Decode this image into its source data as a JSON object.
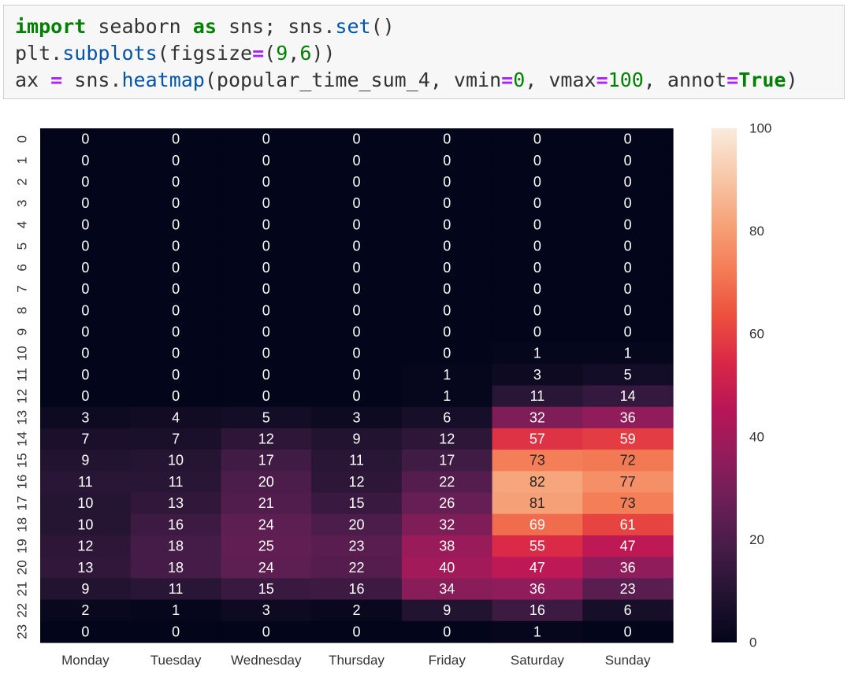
{
  "code": {
    "line1": {
      "kw1": "import",
      "t1": " seaborn ",
      "kw2": "as",
      "t2": " sns; sns.",
      "fn1": "set",
      "t3": "()"
    },
    "line2": {
      "t1": "plt.",
      "fn1": "subplots",
      "t2": "(figsize",
      "op1": "=",
      "t3": "(",
      "n1": "9",
      "t4": ",",
      "n2": "6",
      "t5": "))"
    },
    "line3": {
      "t1": "ax ",
      "op1": "=",
      "t2": " sns.",
      "fn1": "heatmap",
      "t3": "(popular_time_sum_4, vmin",
      "op2": "=",
      "n1": "0",
      "t4": ", vmax",
      "op3": "=",
      "n2": "100",
      "t5": ", annot",
      "op4": "=",
      "kw1": "True",
      "t6": ")"
    }
  },
  "chart_data": {
    "type": "heatmap",
    "columns": [
      "Monday",
      "Tuesday",
      "Wednesday",
      "Thursday",
      "Friday",
      "Saturday",
      "Sunday"
    ],
    "rows": [
      "0",
      "1",
      "2",
      "3",
      "4",
      "5",
      "6",
      "7",
      "8",
      "9",
      "10",
      "11",
      "12",
      "13",
      "14",
      "15",
      "16",
      "17",
      "18",
      "19",
      "20",
      "21",
      "22",
      "23"
    ],
    "values": [
      [
        0,
        0,
        0,
        0,
        0,
        0,
        0
      ],
      [
        0,
        0,
        0,
        0,
        0,
        0,
        0
      ],
      [
        0,
        0,
        0,
        0,
        0,
        0,
        0
      ],
      [
        0,
        0,
        0,
        0,
        0,
        0,
        0
      ],
      [
        0,
        0,
        0,
        0,
        0,
        0,
        0
      ],
      [
        0,
        0,
        0,
        0,
        0,
        0,
        0
      ],
      [
        0,
        0,
        0,
        0,
        0,
        0,
        0
      ],
      [
        0,
        0,
        0,
        0,
        0,
        0,
        0
      ],
      [
        0,
        0,
        0,
        0,
        0,
        0,
        0
      ],
      [
        0,
        0,
        0,
        0,
        0,
        0,
        0
      ],
      [
        0,
        0,
        0,
        0,
        0,
        1,
        1
      ],
      [
        0,
        0,
        0,
        0,
        1,
        3,
        5
      ],
      [
        0,
        0,
        0,
        0,
        1,
        11,
        14
      ],
      [
        3,
        4,
        5,
        3,
        6,
        32,
        36
      ],
      [
        7,
        7,
        12,
        9,
        12,
        57,
        59
      ],
      [
        9,
        10,
        17,
        11,
        17,
        73,
        72
      ],
      [
        11,
        11,
        20,
        12,
        22,
        82,
        77
      ],
      [
        10,
        13,
        21,
        15,
        26,
        81,
        73
      ],
      [
        10,
        16,
        24,
        20,
        32,
        69,
        61
      ],
      [
        12,
        18,
        25,
        23,
        38,
        55,
        47
      ],
      [
        13,
        18,
        24,
        22,
        40,
        47,
        36
      ],
      [
        9,
        11,
        15,
        16,
        34,
        36,
        23
      ],
      [
        2,
        1,
        3,
        2,
        9,
        16,
        6
      ],
      [
        0,
        0,
        0,
        0,
        0,
        1,
        0
      ]
    ],
    "vmin": 0,
    "vmax": 100,
    "colorbar_ticks": [
      0,
      20,
      40,
      60,
      80,
      100
    ],
    "colormap": "rocket",
    "colormap_stops": [
      "#03051a",
      "#221331",
      "#451c47",
      "#6a1f56",
      "#921c5b",
      "#b91657",
      "#d92847",
      "#ed503e",
      "#f47d57",
      "#f6a47b",
      "#f7c9aa",
      "#faebdd"
    ]
  }
}
